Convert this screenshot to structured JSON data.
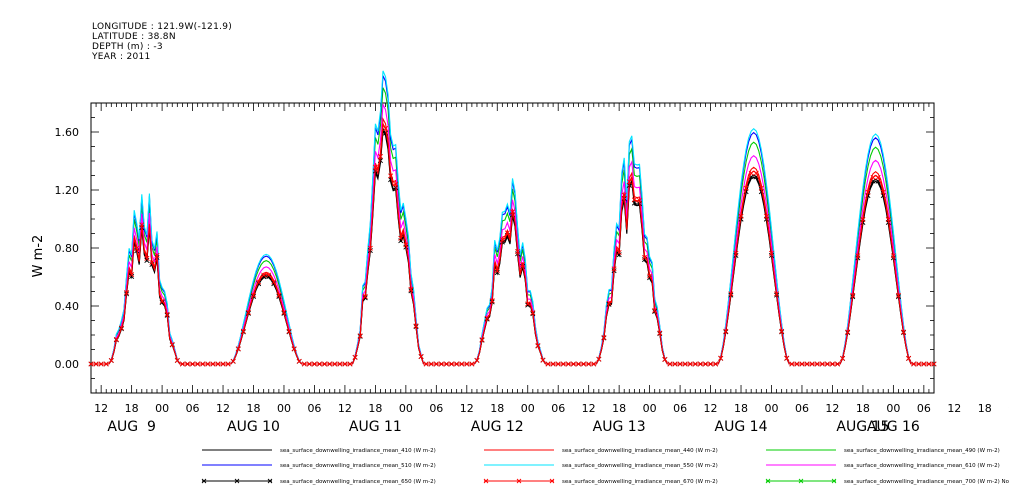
{
  "header": {
    "longitude": "LONGITUDE : 121.9W(-121.9)",
    "latitude": "LATITUDE : 38.8N",
    "depth": "DEPTH (m) : -3",
    "year": "YEAR : 2011"
  },
  "chart_data": {
    "type": "line",
    "title": "",
    "xlabel": "",
    "ylabel": "W m-2",
    "ylim": [
      -0.2,
      1.8
    ],
    "xlim_hours": [
      10,
      176
    ],
    "y_ticks": [
      "0.00",
      "0.40",
      "0.80",
      "1.20",
      "1.60"
    ],
    "x_ticks": [
      "12",
      "18",
      "00",
      "06",
      "12",
      "18",
      "00",
      "06",
      "12",
      "18",
      "00",
      "06",
      "12",
      "18",
      "00",
      "06",
      "12",
      "18",
      "00",
      "06",
      "12",
      "18",
      "00",
      "06",
      "12",
      "18",
      "00",
      "06",
      "12",
      "18",
      "00",
      "06"
    ],
    "date_labels": [
      "AUG  9",
      "AUG 10",
      "AUG 11",
      "AUG 12",
      "AUG 13",
      "AUG 14",
      "AUG 15",
      "AUG 16"
    ],
    "grid": false,
    "legend_position": "bottom",
    "days": [
      {
        "label": "AUG 9",
        "noon_hour": 20.5,
        "peak": 0.85
      },
      {
        "label": "AUG 10",
        "noon_hour": 44.5,
        "peak": 0.62
      },
      {
        "label": "AUG 11",
        "noon_hour": 68.5,
        "peak": 1.45
      },
      {
        "label": "AUG 12",
        "noon_hour": 92.5,
        "peak": 0.9
      },
      {
        "label": "AUG 13",
        "noon_hour": 116.5,
        "peak": 1.1
      },
      {
        "label": "AUG 14",
        "noon_hour": 140.5,
        "peak": 1.33
      },
      {
        "label": "AUG 15",
        "noon_hour": 164.5,
        "peak": 1.3
      }
    ],
    "series": [
      {
        "name": "sea_surface_downwelling_irradiance_mean_410 (W m-2)",
        "color": "#000000",
        "scale": 0.97,
        "marker": false
      },
      {
        "name": "sea_surface_downwelling_irradiance_mean_440 (W m-2)",
        "color": "#ff0000",
        "scale": 1.02,
        "marker": false
      },
      {
        "name": "sea_surface_downwelling_irradiance_mean_490 (W m-2)",
        "color": "#00cc00",
        "scale": 1.15,
        "marker": false
      },
      {
        "name": "sea_surface_downwelling_irradiance_mean_510 (W m-2)",
        "color": "#0000ff",
        "scale": 1.2,
        "marker": false
      },
      {
        "name": "sea_surface_downwelling_irradiance_mean_550 (W m-2)",
        "color": "#00e5ff",
        "scale": 1.22,
        "marker": false
      },
      {
        "name": "sea_surface_downwelling_irradiance_mean_610 (W m-2)",
        "color": "#ff00ff",
        "scale": 1.08,
        "marker": false
      },
      {
        "name": "sea_surface_downwelling_irradiance_mean_650 (W m-2)",
        "color": "#000000",
        "scale": 0.98,
        "marker": true
      },
      {
        "name": "sea_surface_downwelling_irradiance_mean_670 (W m-2)",
        "color": "#ff0000",
        "scale": 1.0,
        "marker": true
      },
      {
        "name": "sea_surface_downwelling_irradiance_mean_700 (W m-2) No Valid Data",
        "color": "#00cc00",
        "scale": 0,
        "marker": true
      }
    ]
  }
}
